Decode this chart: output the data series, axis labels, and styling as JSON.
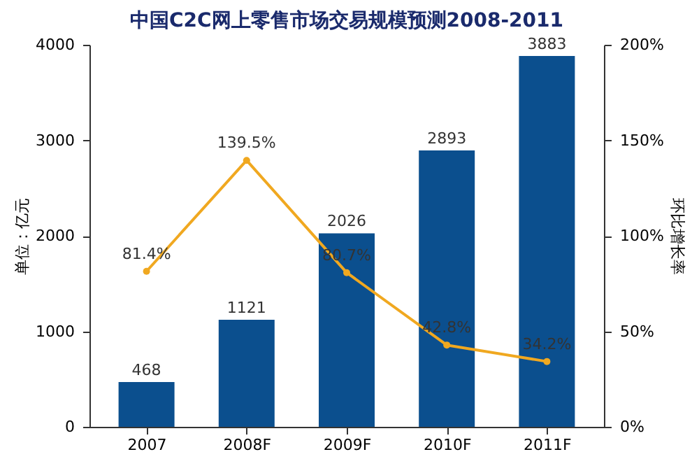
{
  "chart_data": {
    "type": "bar",
    "title": "中国C2C网上零售市场交易规模预测2008-2011",
    "ylabel": "单位：亿元",
    "y2label": "环比增长率",
    "categories": [
      "2007",
      "2008F",
      "2009F",
      "2010F",
      "2011F"
    ],
    "series": [
      {
        "color": "#0b4f8e",
        "values": [
          468,
          1121,
          2026,
          2893,
          3883
        ],
        "value_labels": [
          "468",
          "1121",
          "2026",
          "2893",
          "3883"
        ]
      },
      {
        "type": "line",
        "axis": "y2",
        "color": "#f0a820",
        "marker": "circle",
        "values": [
          81.4,
          139.5,
          80.7,
          42.8,
          34.2
        ],
        "value_labels": [
          "81.4%",
          "139.5%",
          "80.7%",
          "42.8%",
          "34.2%"
        ]
      }
    ],
    "ylim": [
      0,
      4000
    ],
    "yticks": [
      0,
      1000,
      2000,
      3000,
      4000
    ],
    "y2lim": [
      0,
      200
    ],
    "y2ticks": [
      {
        "value": 0,
        "label": "0%"
      },
      {
        "value": 50,
        "label": "50%"
      },
      {
        "value": 100,
        "label": "100%"
      },
      {
        "value": 150,
        "label": "150%"
      },
      {
        "value": 200,
        "label": "200%"
      }
    ],
    "grid": false
  }
}
